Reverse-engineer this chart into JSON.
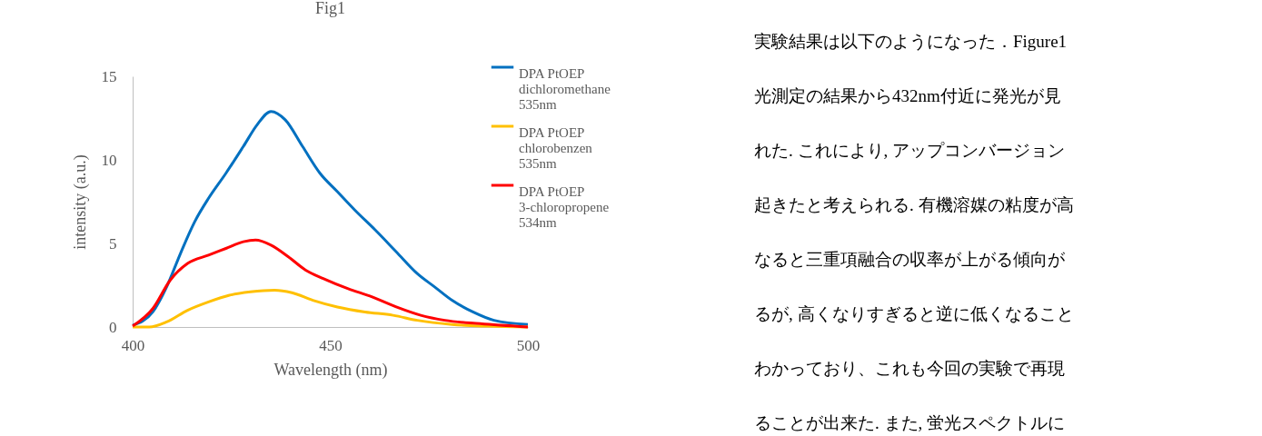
{
  "chart_data": {
    "type": "line",
    "title": "Fig1",
    "xlabel": "Wavelength (nm)",
    "ylabel": "intensity (a.u.)",
    "xlim": [
      400,
      500
    ],
    "xticks": [
      400,
      450,
      500
    ],
    "ylim": [
      0,
      15
    ],
    "yticks": [
      0,
      5,
      10,
      15
    ],
    "grid": false,
    "legend": "right",
    "marker": "none",
    "line_style": "solid",
    "series": [
      {
        "name": "DPA PtOEP dichloromethane 535nm",
        "color": "#0070c0",
        "x": [
          400,
          405.1,
          408.6,
          412.1,
          415.7,
          419.2,
          423.6,
          428,
          431.5,
          435,
          438.6,
          443,
          447.4,
          451.8,
          456.2,
          461.4,
          466.7,
          472,
          476.4,
          480.8,
          486.1,
          491.4,
          500
        ],
        "values": [
          0.1,
          0.9,
          2.4,
          4.4,
          6.3,
          7.7,
          9.2,
          10.8,
          12.1,
          12.9,
          12.4,
          10.8,
          9.2,
          8.1,
          7.0,
          5.8,
          4.5,
          3.2,
          2.4,
          1.6,
          0.9,
          0.4,
          0.15
        ]
      },
      {
        "name": "DPA PtOEP chlorobenzen 535nm",
        "color": "#ffc000",
        "x": [
          400,
          404.2,
          408.6,
          413.9,
          419.2,
          424.5,
          429.8,
          435.9,
          440.3,
          445.6,
          451.8,
          458.8,
          465.9,
          472,
          480.8,
          489.6,
          500
        ],
        "values": [
          0,
          0,
          0.3,
          1.0,
          1.5,
          1.9,
          2.1,
          2.2,
          2.05,
          1.6,
          1.2,
          0.9,
          0.7,
          0.4,
          0.15,
          0.05,
          0
        ]
      },
      {
        "name": "DPA PtOEP 3-chloropropene 534nm",
        "color": "#ff0000",
        "x": [
          400,
          405.1,
          409.5,
          413.9,
          419.2,
          423.6,
          428,
          431.1,
          435,
          439.4,
          443.8,
          448.2,
          454.4,
          460.6,
          466.7,
          472.9,
          479,
          487.9,
          500
        ],
        "values": [
          0.05,
          1.1,
          2.8,
          3.8,
          4.3,
          4.7,
          5.1,
          5.2,
          4.9,
          4.2,
          3.4,
          2.9,
          2.3,
          1.8,
          1.2,
          0.7,
          0.4,
          0.2,
          0
        ]
      }
    ],
    "annotations": [
      "実験結果は以下のようになった．Figure1",
      "光測定の結果から432nm付近に発光が見",
      "れた. これにより, アップコンバージョン",
      "起きたと考えられる. 有機溶媒の粘度が高",
      "なると三重項融合の収率が上がる傾向が",
      "るが, 高くなりすぎると逆に低くなること",
      "わかっており、これも今回の実験で再現",
      "ることが出来た. また, 蛍光スペクトルに"
    ]
  }
}
